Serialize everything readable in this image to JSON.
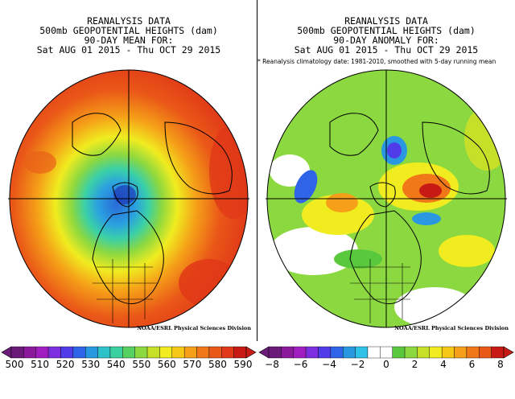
{
  "left": {
    "title": [
      "REANALYSIS DATA",
      "500mb GEOPOTENTIAL HEIGHTS (dam)",
      "90-DAY MEAN FOR:",
      "Sat AUG 01 2015 - Thu OCT 29 2015"
    ],
    "credit": "NOAA/ESRL Physical Sciences Division",
    "colorbar": {
      "colors": [
        "#6a1a78",
        "#8a1a9a",
        "#a01ec0",
        "#7d2fe0",
        "#4f3be8",
        "#2f63e8",
        "#2a98e0",
        "#2ec2c8",
        "#3ad0a0",
        "#56d060",
        "#8cd840",
        "#c6e02a",
        "#f0ec20",
        "#f5c818",
        "#f5a018",
        "#f07818",
        "#ea5818",
        "#e03818",
        "#c81a14"
      ],
      "ticks": [
        "500",
        "510",
        "520",
        "530",
        "540",
        "550",
        "560",
        "570",
        "580",
        "590"
      ]
    }
  },
  "right": {
    "title": [
      "REANALYSIS DATA",
      "500mb GEOPOTENTIAL HEIGHTS (dam)",
      "90-DAY ANOMALY FOR:",
      "Sat AUG 01 2015 - Thu OCT 29 2015"
    ],
    "subnote": "* Reanalysis climatology date: 1981-2010, smoothed with 5-day running mean",
    "credit": "NOAA/ESRL Physical Sciences Division",
    "colorbar": {
      "colors": [
        "#6a1a78",
        "#8a1a9a",
        "#a01ec0",
        "#7d2fe0",
        "#4f3be8",
        "#2f63e8",
        "#2a98e0",
        "#2ec2e8",
        "#ffffff",
        "#ffffff",
        "#5ac83c",
        "#8cd840",
        "#c6e02a",
        "#f0ec20",
        "#f5c818",
        "#f5a018",
        "#f07818",
        "#ea5818",
        "#c81a14"
      ],
      "ticks": [
        "−8",
        "−6",
        "−4",
        "−2",
        "0",
        "2",
        "4",
        "6",
        "8"
      ]
    }
  }
}
